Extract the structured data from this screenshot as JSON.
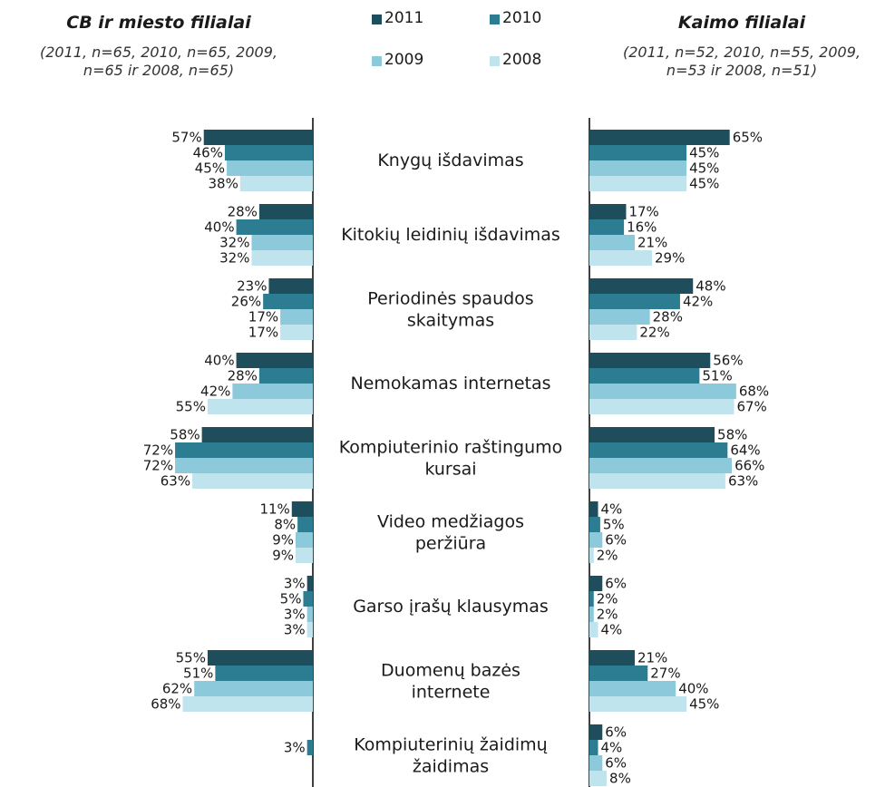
{
  "chart_data": {
    "type": "butterfly",
    "categories": [
      "Knygų išdavimas",
      "Kitokių leidinių išdavimas",
      "Periodinės spaudos\nskaitymas",
      "Nemokamas internetas",
      "Kompiuterinio raštingumo\nkursai",
      "Video medžiagos\nperžiūra",
      "Garso įrašų klausymas",
      "Duomenų bazės\ninternete",
      "Kompiuterinių žaidimų\nžaidimas"
    ],
    "series": [
      {
        "name": "2011",
        "color": "#1e4d5c"
      },
      {
        "name": "2010",
        "color": "#2c7d92"
      },
      {
        "name": "2009",
        "color": "#8ccadb"
      },
      {
        "name": "2008",
        "color": "#c0e4ee"
      }
    ],
    "panels": [
      {
        "side": "left",
        "title": "CB ir miesto filialai",
        "subtitle": "(2011, n=65, 2010, n=65, 2009,\nn=65 ir 2008, n=65)",
        "values": [
          [
            57,
            28,
            23,
            40,
            58,
            11,
            3,
            55,
            null
          ],
          [
            46,
            40,
            26,
            28,
            72,
            8,
            5,
            51,
            3
          ],
          [
            45,
            32,
            17,
            42,
            72,
            9,
            3,
            62,
            null
          ],
          [
            38,
            32,
            17,
            55,
            63,
            9,
            3,
            68,
            null
          ]
        ],
        "value_labels": [
          [
            "57%",
            "28%",
            "23%",
            "40%",
            "58%",
            "11%",
            "3%",
            "55%",
            null
          ],
          [
            "46%",
            "40%",
            "26%",
            "28%",
            "72%",
            "8%",
            "5%",
            "51%",
            "3%"
          ],
          [
            "45%",
            "32%",
            "17%",
            "42%",
            "72%",
            "9%",
            "3%",
            "62%",
            null
          ],
          [
            "38%",
            "32%",
            "17%",
            "55%",
            "63%",
            "9%",
            "3%",
            "68%",
            null
          ]
        ]
      },
      {
        "side": "right",
        "title": "Kaimo filialai",
        "subtitle": "(2011, n=52, 2010, n=55, 2009,\nn=53 ir 2008, n=51)",
        "values": [
          [
            65,
            17,
            48,
            56,
            58,
            4,
            6,
            21,
            6
          ],
          [
            45,
            16,
            42,
            51,
            64,
            5,
            2,
            27,
            4
          ],
          [
            45,
            21,
            28,
            68,
            66,
            6,
            2,
            40,
            6
          ],
          [
            45,
            29,
            22,
            67,
            63,
            2,
            4,
            45,
            8
          ]
        ],
        "value_labels": [
          [
            "65%",
            "17%",
            "48%",
            "56%",
            "58%",
            "4%",
            "6%",
            "21%",
            "6%"
          ],
          [
            "45%",
            "16%",
            "42%",
            "51%",
            "64%",
            "5%",
            "2%",
            "27%",
            "4%"
          ],
          [
            "45%",
            "21%",
            "28%",
            "68%",
            "66%",
            "6%",
            "2%",
            "40%",
            "6%"
          ],
          [
            "45%",
            "29%",
            "22%",
            "67%",
            "63%",
            "2%",
            "4%",
            "45%",
            "8%"
          ]
        ]
      }
    ]
  }
}
